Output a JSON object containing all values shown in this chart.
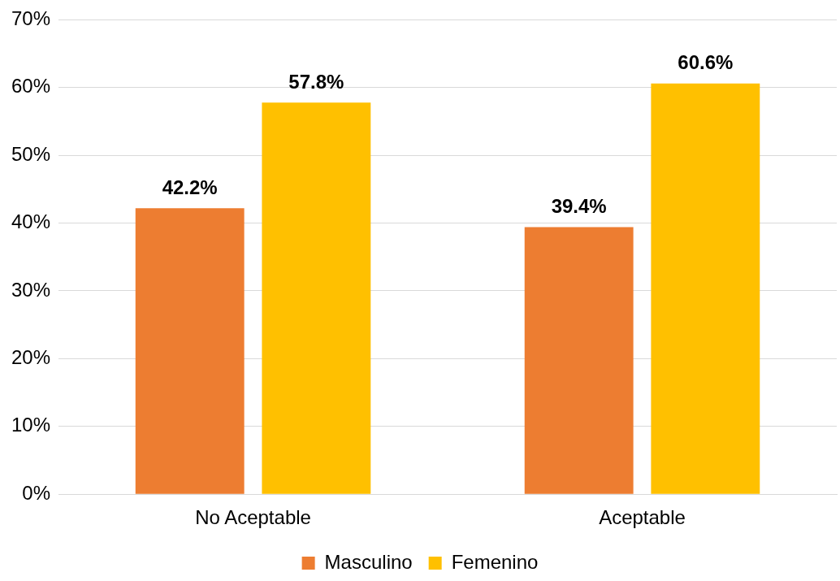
{
  "chart_data": {
    "type": "bar",
    "categories": [
      "No Aceptable",
      "Aceptable"
    ],
    "series": [
      {
        "name": "Masculino",
        "color": "#ed7d31",
        "values": [
          42.2,
          39.4
        ],
        "value_labels": [
          "42.2%",
          "39.4%"
        ]
      },
      {
        "name": "Femenino",
        "color": "#ffc000",
        "values": [
          57.8,
          60.6
        ],
        "value_labels": [
          "57.8%",
          "60.6%"
        ]
      }
    ],
    "ylim": [
      0,
      70
    ],
    "yticks": [
      {
        "value": 0,
        "label": "0%"
      },
      {
        "value": 10,
        "label": "10%"
      },
      {
        "value": 20,
        "label": "20%"
      },
      {
        "value": 30,
        "label": "30%"
      },
      {
        "value": 40,
        "label": "40%"
      },
      {
        "value": 50,
        "label": "50%"
      },
      {
        "value": 60,
        "label": "60%"
      },
      {
        "value": 70,
        "label": "70%"
      }
    ],
    "grid": "y",
    "legend": "bottom"
  }
}
